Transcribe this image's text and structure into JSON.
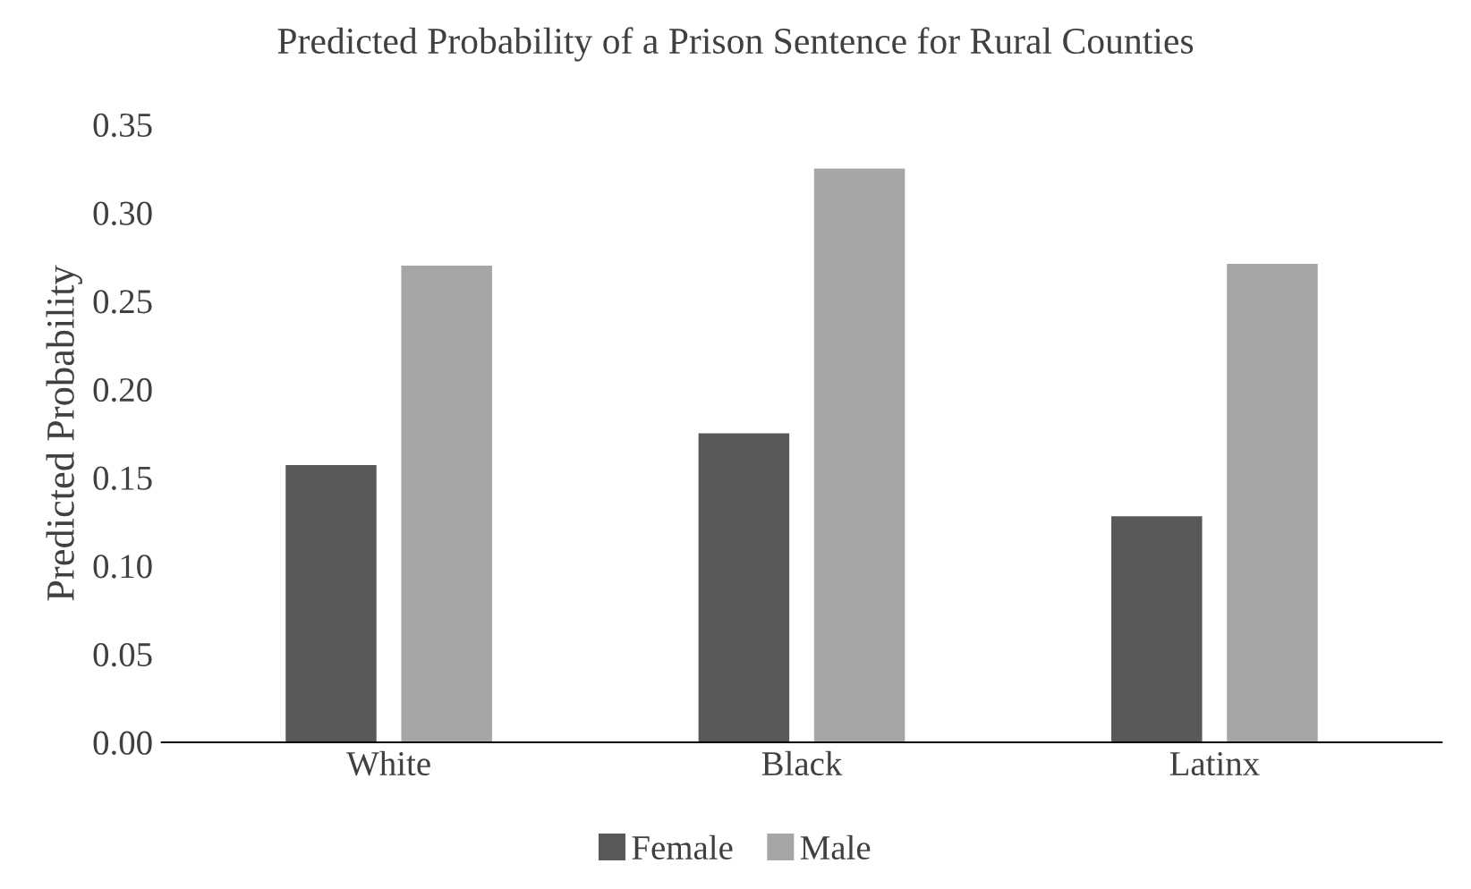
{
  "chart_data": {
    "type": "bar",
    "title": "Predicted Probability of a Prison Sentence for Rural Counties",
    "ylabel": "Predicted Probability",
    "categories": [
      "White",
      "Black",
      "Latinx"
    ],
    "series": [
      {
        "name": "Female",
        "color": "#595959",
        "values": [
          0.157,
          0.175,
          0.128
        ]
      },
      {
        "name": "Male",
        "color": "#a6a6a6",
        "values": [
          0.27,
          0.325,
          0.271
        ]
      }
    ],
    "ylim": [
      0,
      0.35
    ],
    "yticks": [
      {
        "value": 0,
        "label": "0.00"
      },
      {
        "value": 0.05,
        "label": "0.05"
      },
      {
        "value": 0.1,
        "label": "0.10"
      },
      {
        "value": 0.15,
        "label": "0.15"
      },
      {
        "value": 0.2,
        "label": "0.20"
      },
      {
        "value": 0.25,
        "label": "0.25"
      },
      {
        "value": 0.3,
        "label": "0.30"
      },
      {
        "value": 0.35,
        "label": "0.35"
      }
    ],
    "grid": false,
    "legend": "bottom"
  }
}
